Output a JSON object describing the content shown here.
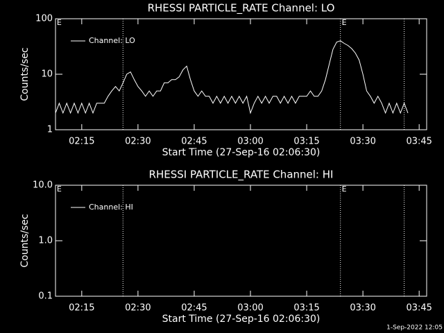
{
  "chart_data": [
    {
      "type": "line",
      "title": "RHESSI PARTICLE_RATE Channel: LO",
      "xlabel": "Start Time (27-Sep-16 02:06:30)",
      "ylabel": "Counts/sec",
      "log_y": true,
      "ylim": [
        1,
        100
      ],
      "yticks": [
        1,
        10,
        100
      ],
      "xlim": [
        "02:08",
        "03:47"
      ],
      "xticks": [
        "02:15",
        "02:30",
        "02:45",
        "03:00",
        "03:15",
        "03:30",
        "03:45"
      ],
      "legend": "top-left",
      "vlines": [
        "02:26",
        "03:24",
        "03:41"
      ],
      "annotations": [
        {
          "text": "E",
          "x": "02:09"
        },
        {
          "text": "E",
          "x": "03:25"
        }
      ],
      "x": [
        "02:08",
        "02:09",
        "02:10",
        "02:11",
        "02:12",
        "02:13",
        "02:14",
        "02:15",
        "02:16",
        "02:17",
        "02:18",
        "02:19",
        "02:20",
        "02:21",
        "02:22",
        "02:23",
        "02:24",
        "02:25",
        "02:26",
        "02:27",
        "02:28",
        "02:29",
        "02:30",
        "02:31",
        "02:32",
        "02:33",
        "02:34",
        "02:35",
        "02:36",
        "02:37",
        "02:38",
        "02:39",
        "02:40",
        "02:41",
        "02:42",
        "02:43",
        "02:44",
        "02:45",
        "02:46",
        "02:47",
        "02:48",
        "02:49",
        "02:50",
        "02:51",
        "02:52",
        "02:53",
        "02:54",
        "02:55",
        "02:56",
        "02:57",
        "02:58",
        "02:59",
        "03:00",
        "03:01",
        "03:02",
        "03:03",
        "03:04",
        "03:05",
        "03:06",
        "03:07",
        "03:08",
        "03:09",
        "03:10",
        "03:11",
        "03:12",
        "03:13",
        "03:14",
        "03:15",
        "03:16",
        "03:17",
        "03:18",
        "03:19",
        "03:20",
        "03:21",
        "03:22",
        "03:23",
        "03:24",
        "03:25",
        "03:26",
        "03:27",
        "03:28",
        "03:29",
        "03:30",
        "03:31",
        "03:32",
        "03:33",
        "03:34",
        "03:35",
        "03:36",
        "03:37",
        "03:38",
        "03:39",
        "03:40",
        "03:41",
        "03:42"
      ],
      "series": [
        {
          "name": "Channel: LO",
          "color": "#ffffff",
          "values": [
            2,
            3,
            2,
            3,
            2,
            3,
            2,
            3,
            2,
            3,
            2,
            3,
            3,
            3,
            4,
            5,
            6,
            5,
            7,
            10,
            11,
            8,
            6,
            5,
            4,
            5,
            4,
            5,
            5,
            7,
            7,
            8,
            8,
            9,
            12,
            14,
            8,
            5,
            4,
            5,
            4,
            4,
            3,
            4,
            3,
            4,
            3,
            4,
            3,
            4,
            3,
            4,
            2,
            3,
            4,
            3,
            4,
            3,
            4,
            4,
            3,
            4,
            3,
            4,
            3,
            4,
            4,
            4,
            5,
            4,
            4,
            5,
            8,
            15,
            28,
            38,
            40,
            36,
            33,
            29,
            24,
            18,
            10,
            5,
            4,
            3,
            4,
            3,
            2,
            3,
            2,
            3,
            2,
            3,
            2
          ]
        }
      ]
    },
    {
      "type": "line",
      "title": "RHESSI PARTICLE_RATE Channel: HI",
      "xlabel": "Start Time (27-Sep-16 02:06:30)",
      "ylabel": "Counts/sec",
      "log_y": true,
      "ylim": [
        0.1,
        10
      ],
      "yticks": [
        0.1,
        {
          "value": 1,
          "label": "1.0"
        },
        {
          "value": 10,
          "label": "10.0"
        }
      ],
      "xlim": [
        "02:08",
        "03:47"
      ],
      "xticks": [
        "02:15",
        "02:30",
        "02:45",
        "03:00",
        "03:15",
        "03:30",
        "03:45"
      ],
      "legend": "top-left",
      "vlines": [
        "02:26",
        "03:24",
        "03:41"
      ],
      "annotations": [
        {
          "text": "E",
          "x": "02:09"
        },
        {
          "text": "E",
          "x": "03:25"
        }
      ],
      "x": [],
      "series": [
        {
          "name": "Channel: HI",
          "color": "#ffffff",
          "values": []
        }
      ]
    }
  ],
  "footer": "1-Sep-2022 12:05"
}
